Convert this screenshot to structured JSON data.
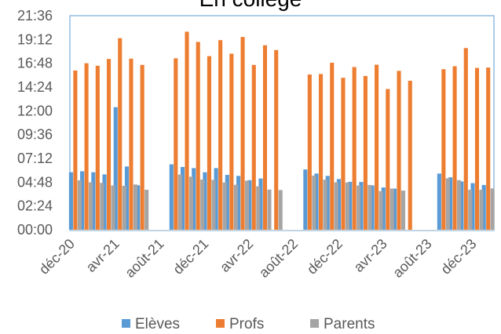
{
  "chart_data": {
    "type": "bar",
    "title": "En collège",
    "yaxis": {
      "min_minutes": 0,
      "max_minutes": 1296,
      "tick_labels": [
        "00:00",
        "02:24",
        "04:48",
        "07:12",
        "09:36",
        "12:00",
        "14:24",
        "16:48",
        "19:12",
        "21:36"
      ]
    },
    "xaxis": {
      "tick_labels": [
        "déc-20",
        "avr-21",
        "août-21",
        "déc-21",
        "avr-22",
        "août-22",
        "déc-22",
        "avr-23",
        "août-23",
        "déc-23"
      ]
    },
    "unit": "minutes",
    "legend_position": "bottom",
    "colors": {
      "Elèves": "#5B9BD5",
      "Profs": "#ED7D31",
      "Parents": "#A5A5A5"
    },
    "categories": [
      "déc-20",
      "janv-21",
      "févr-21",
      "mars-21",
      "avr-21",
      "mai-21",
      "juin-21",
      "juil-21",
      "août-21",
      "sept-21",
      "oct-21",
      "nov-21",
      "déc-21",
      "janv-22",
      "févr-22",
      "mars-22",
      "avr-22",
      "mai-22",
      "juin-22",
      "juil-22",
      "août-22",
      "sept-22",
      "oct-22",
      "nov-22",
      "déc-22",
      "janv-23",
      "févr-23",
      "mars-23",
      "avr-23",
      "mai-23",
      "juin-23",
      "juil-23",
      "août-23",
      "sept-23",
      "oct-23",
      "nov-23",
      "déc-23",
      "janv-24"
    ],
    "series": [
      {
        "name": "Elèves",
        "values": [
          348,
          354,
          348,
          335,
          742,
          383,
          269,
          null,
          null,
          396,
          380,
          373,
          348,
          373,
          332,
          326,
          300,
          310,
          null,
          null,
          null,
          365,
          340,
          326,
          307,
          290,
          289,
          268,
          256,
          249,
          null,
          null,
          null,
          340,
          317,
          292,
          282,
          271
        ]
      },
      {
        "name": "Profs",
        "values": [
          964,
          1008,
          993,
          1034,
          1160,
          1036,
          998,
          null,
          null,
          1038,
          1199,
          1137,
          1051,
          1148,
          1066,
          1167,
          998,
          1117,
          1088,
          null,
          null,
          940,
          943,
          1011,
          920,
          985,
          931,
          999,
          852,
          962,
          902,
          null,
          null,
          972,
          990,
          1100,
          980,
          982
        ]
      },
      {
        "name": "Parents",
        "values": [
          299,
          287,
          284,
          268,
          266,
          274,
          242,
          null,
          null,
          334,
          321,
          304,
          302,
          286,
          272,
          297,
          263,
          243,
          240,
          null,
          null,
          328,
          303,
          287,
          286,
          268,
          271,
          234,
          249,
          237,
          null,
          null,
          null,
          312,
          300,
          242,
          242,
          250
        ]
      }
    ]
  }
}
